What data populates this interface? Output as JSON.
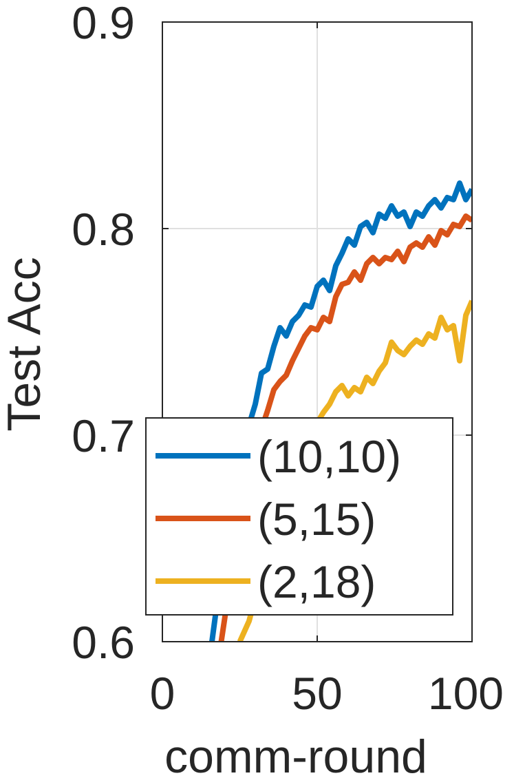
{
  "chart_data": {
    "type": "line",
    "xlabel": "comm-round",
    "ylabel": "Test Acc",
    "xlim": [
      0,
      100
    ],
    "ylim": [
      0.6,
      0.9
    ],
    "xticks": [
      0,
      50,
      100
    ],
    "xtick_labels": [
      "0",
      "50",
      "100"
    ],
    "yticks": [
      0.6,
      0.7,
      0.8,
      0.9
    ],
    "ytick_labels": [
      "0.6",
      "0.7",
      "0.8",
      "0.9"
    ],
    "grid": true,
    "legend_position": "lower-left",
    "series": [
      {
        "name": "(10,10)",
        "color": "#0072BD",
        "x": [
          16,
          20,
          24,
          28,
          30,
          32,
          34,
          36,
          38,
          40,
          42,
          44,
          46,
          48,
          50,
          52,
          54,
          56,
          58,
          60,
          62,
          64,
          66,
          68,
          70,
          72,
          74,
          76,
          78,
          80,
          82,
          84,
          86,
          88,
          90,
          92,
          94,
          96,
          98,
          100
        ],
        "y": [
          0.6,
          0.645,
          0.68,
          0.705,
          0.715,
          0.73,
          0.732,
          0.743,
          0.752,
          0.748,
          0.755,
          0.758,
          0.763,
          0.762,
          0.772,
          0.775,
          0.77,
          0.782,
          0.788,
          0.795,
          0.792,
          0.801,
          0.803,
          0.798,
          0.807,
          0.805,
          0.811,
          0.806,
          0.808,
          0.801,
          0.808,
          0.806,
          0.811,
          0.814,
          0.81,
          0.815,
          0.814,
          0.822,
          0.814,
          0.819
        ]
      },
      {
        "name": "(5,15)",
        "color": "#D95319",
        "x": [
          19,
          23,
          27,
          30,
          32,
          34,
          36,
          38,
          40,
          42,
          44,
          46,
          48,
          50,
          52,
          54,
          56,
          58,
          60,
          62,
          64,
          66,
          68,
          70,
          72,
          74,
          76,
          78,
          80,
          82,
          84,
          86,
          88,
          90,
          92,
          94,
          96,
          98,
          100
        ],
        "y": [
          0.6,
          0.64,
          0.67,
          0.69,
          0.703,
          0.712,
          0.722,
          0.726,
          0.729,
          0.736,
          0.742,
          0.748,
          0.752,
          0.751,
          0.757,
          0.755,
          0.767,
          0.773,
          0.774,
          0.779,
          0.775,
          0.783,
          0.786,
          0.783,
          0.786,
          0.785,
          0.789,
          0.784,
          0.791,
          0.793,
          0.791,
          0.796,
          0.792,
          0.799,
          0.797,
          0.802,
          0.801,
          0.806,
          0.804
        ]
      },
      {
        "name": "(2,18)",
        "color": "#EDB120",
        "x": [
          25,
          28,
          31,
          34,
          38,
          42,
          45,
          48,
          50,
          52,
          54,
          56,
          58,
          60,
          62,
          64,
          66,
          68,
          70,
          72,
          74,
          76,
          78,
          80,
          82,
          84,
          86,
          88,
          90,
          92,
          94,
          96,
          98,
          100
        ],
        "y": [
          0.6,
          0.61,
          0.627,
          0.64,
          0.658,
          0.676,
          0.684,
          0.693,
          0.706,
          0.711,
          0.715,
          0.721,
          0.724,
          0.719,
          0.723,
          0.721,
          0.728,
          0.725,
          0.731,
          0.735,
          0.745,
          0.741,
          0.739,
          0.743,
          0.746,
          0.744,
          0.749,
          0.747,
          0.757,
          0.751,
          0.753,
          0.736,
          0.758,
          0.765
        ]
      }
    ]
  }
}
